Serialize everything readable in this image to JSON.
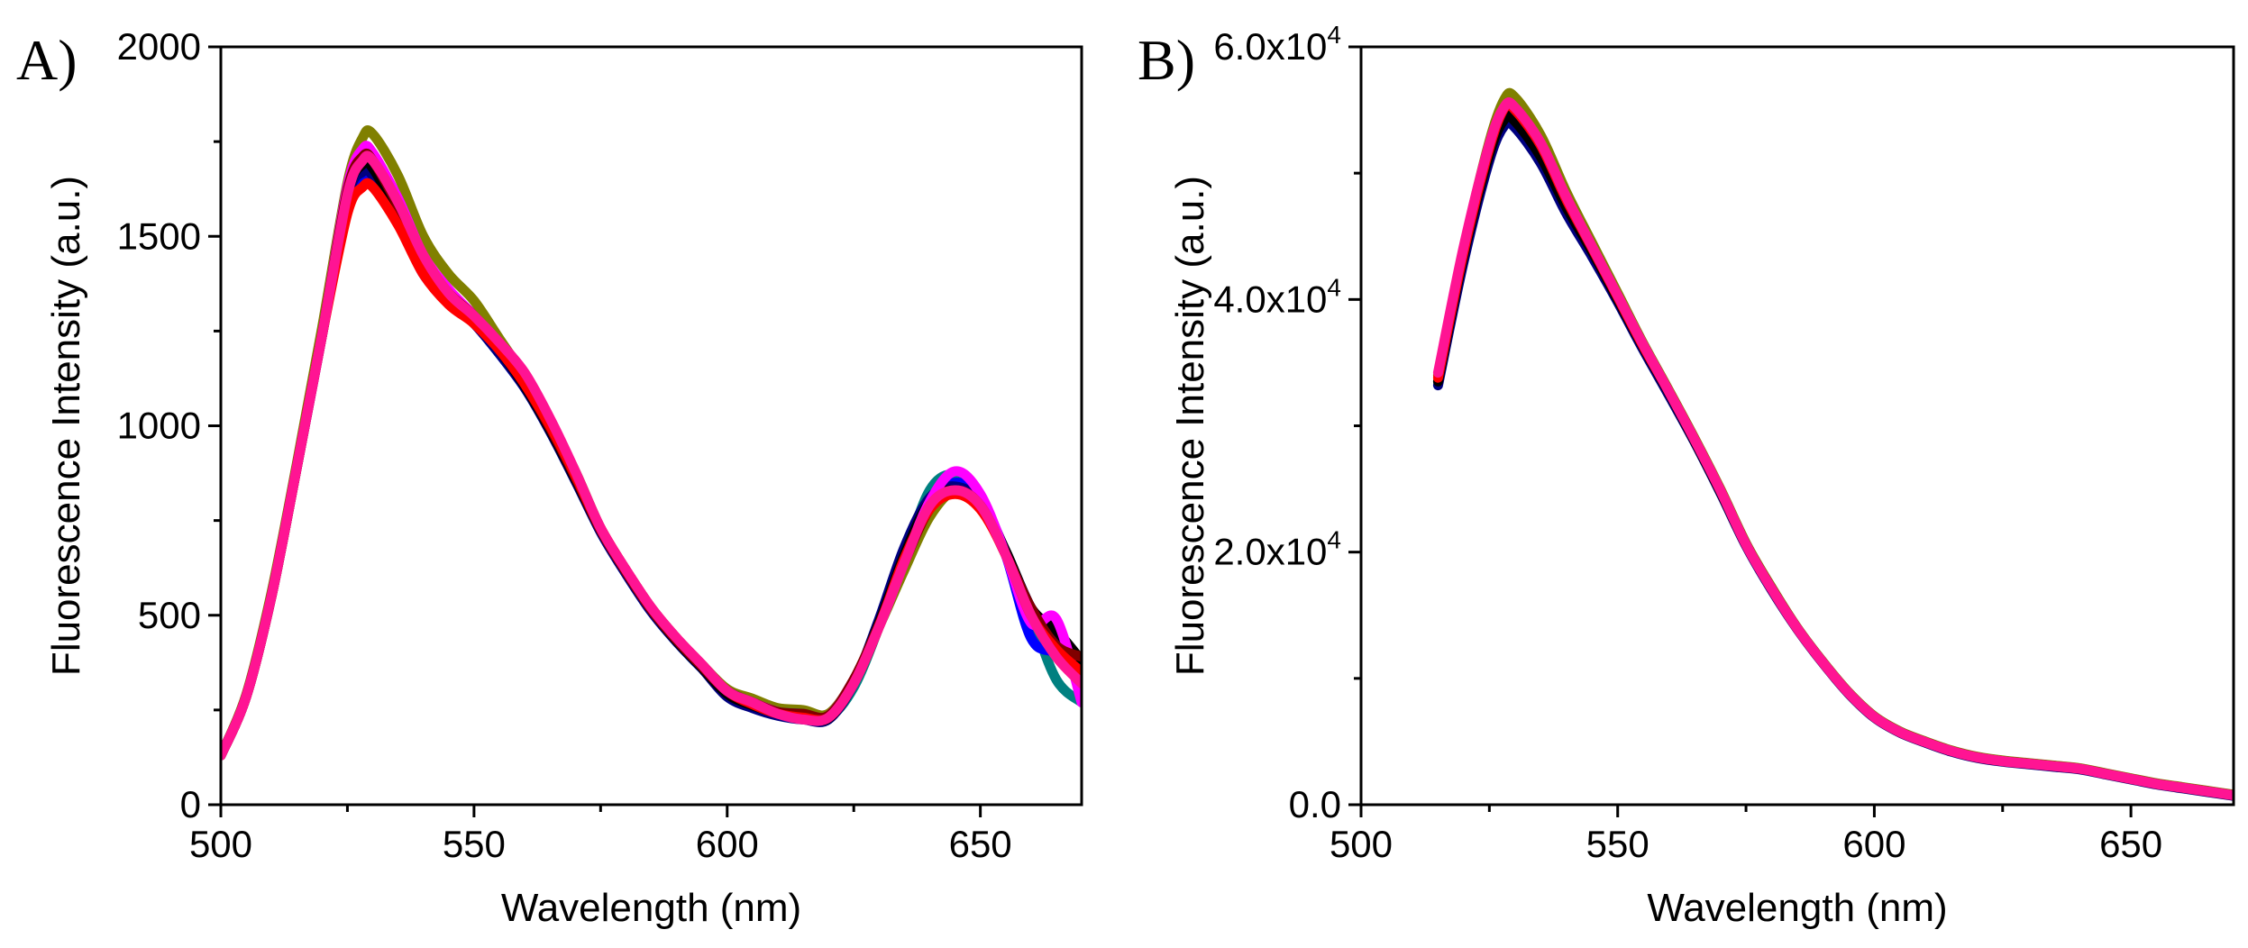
{
  "chart_data": [
    {
      "type": "line",
      "panel_label": "A)",
      "xlabel": "Wavelength (nm)",
      "ylabel": "Fluorescence Intensity (a.u.)",
      "xlim": [
        500,
        670
      ],
      "ylim": [
        0,
        2000
      ],
      "xticks": [
        500,
        550,
        600,
        650
      ],
      "yticks": [
        0,
        500,
        1000,
        1500,
        2000
      ],
      "xtick_labels": [
        "500",
        "550",
        "600",
        "650"
      ],
      "ytick_labels": [
        "0",
        "500",
        "1000",
        "1500",
        "2000"
      ],
      "grid": false,
      "legend": "none",
      "x": [
        500,
        505,
        510,
        515,
        520,
        525,
        528,
        530,
        535,
        540,
        545,
        550,
        555,
        560,
        565,
        570,
        575,
        580,
        585,
        590,
        595,
        600,
        605,
        610,
        615,
        620,
        625,
        630,
        635,
        640,
        645,
        650,
        655,
        660,
        665,
        670
      ],
      "series": [
        {
          "color": "#808000",
          "values": [
            130,
            290,
            560,
            900,
            1260,
            1640,
            1760,
            1770,
            1660,
            1500,
            1400,
            1330,
            1230,
            1130,
            1010,
            880,
            730,
            620,
            520,
            440,
            370,
            305,
            280,
            255,
            250,
            240,
            330,
            470,
            620,
            760,
            830,
            800,
            670,
            510,
            420,
            370
          ]
        },
        {
          "color": "#008080",
          "values": [
            130,
            285,
            550,
            890,
            1240,
            1600,
            1680,
            1670,
            1560,
            1420,
            1340,
            1280,
            1200,
            1110,
            990,
            860,
            720,
            610,
            510,
            430,
            360,
            300,
            270,
            245,
            240,
            230,
            310,
            470,
            650,
            830,
            870,
            800,
            660,
            500,
            330,
            270
          ]
        },
        {
          "color": "#0000ff",
          "values": [
            130,
            285,
            550,
            890,
            1240,
            1590,
            1650,
            1640,
            1540,
            1400,
            1330,
            1270,
            1190,
            1100,
            990,
            860,
            720,
            610,
            510,
            430,
            360,
            290,
            260,
            240,
            230,
            230,
            320,
            480,
            660,
            800,
            850,
            810,
            660,
            440,
            400,
            350
          ]
        },
        {
          "color": "#000080",
          "values": [
            130,
            285,
            550,
            890,
            1240,
            1600,
            1670,
            1660,
            1550,
            1410,
            1330,
            1270,
            1190,
            1100,
            985,
            855,
            720,
            610,
            510,
            430,
            360,
            285,
            255,
            235,
            225,
            225,
            320,
            490,
            680,
            810,
            840,
            800,
            670,
            520,
            430,
            380
          ]
        },
        {
          "color": "#000000",
          "values": [
            130,
            285,
            550,
            890,
            1240,
            1610,
            1690,
            1680,
            1560,
            1420,
            1340,
            1280,
            1200,
            1105,
            990,
            860,
            725,
            615,
            515,
            432,
            362,
            292,
            262,
            242,
            232,
            228,
            325,
            480,
            660,
            800,
            830,
            790,
            670,
            520,
            460,
            380
          ]
        },
        {
          "color": "#ff00ff",
          "values": [
            130,
            285,
            550,
            890,
            1240,
            1630,
            1730,
            1720,
            1600,
            1450,
            1360,
            1290,
            1210,
            1120,
            1000,
            870,
            730,
            620,
            520,
            440,
            370,
            300,
            270,
            245,
            235,
            235,
            330,
            470,
            640,
            800,
            880,
            820,
            660,
            480,
            490,
            270
          ]
        },
        {
          "color": "#800000",
          "values": [
            130,
            285,
            550,
            890,
            1240,
            1620,
            1710,
            1700,
            1580,
            1440,
            1350,
            1290,
            1210,
            1110,
            995,
            865,
            725,
            615,
            515,
            435,
            365,
            300,
            270,
            245,
            240,
            235,
            330,
            475,
            640,
            780,
            830,
            790,
            660,
            520,
            420,
            390
          ]
        },
        {
          "color": "#ff0000",
          "values": [
            130,
            285,
            550,
            890,
            1240,
            1560,
            1630,
            1630,
            1530,
            1400,
            1320,
            1270,
            1200,
            1110,
            1000,
            870,
            730,
            620,
            520,
            440,
            370,
            300,
            265,
            240,
            230,
            230,
            320,
            470,
            650,
            780,
            820,
            780,
            660,
            500,
            410,
            350
          ]
        },
        {
          "color": "#ff1493",
          "values": [
            130,
            285,
            550,
            890,
            1240,
            1610,
            1700,
            1700,
            1590,
            1450,
            1350,
            1290,
            1220,
            1140,
            1020,
            880,
            730,
            620,
            520,
            440,
            370,
            300,
            270,
            240,
            225,
            230,
            320,
            470,
            640,
            790,
            830,
            790,
            660,
            500,
            390,
            320
          ]
        }
      ]
    },
    {
      "type": "line",
      "panel_label": "B)",
      "xlabel": "Wavelength (nm)",
      "ylabel": "Fluorescence Intensity (a.u.)",
      "xlim": [
        500,
        670
      ],
      "ylim": [
        0,
        60000
      ],
      "xticks": [
        500,
        550,
        600,
        650
      ],
      "yticks": [
        0,
        20000,
        40000,
        60000
      ],
      "xtick_labels": [
        "500",
        "550",
        "600",
        "650"
      ],
      "ytick_labels": [
        {
          "mantissa": "0.0",
          "exponent": ""
        },
        {
          "mantissa": "2.0x10",
          "exponent": "4"
        },
        {
          "mantissa": "4.0x10",
          "exponent": "4"
        },
        {
          "mantissa": "6.0x10",
          "exponent": "4"
        }
      ],
      "grid": false,
      "legend": "none",
      "x": [
        515,
        520,
        525,
        528,
        530,
        535,
        540,
        545,
        550,
        555,
        560,
        565,
        570,
        575,
        580,
        585,
        590,
        595,
        600,
        605,
        610,
        615,
        620,
        625,
        630,
        635,
        640,
        645,
        650,
        655,
        660,
        665,
        670
      ],
      "series": [
        {
          "color": "#808000",
          "values": [
            34000,
            44000,
            52500,
            55900,
            56000,
            53000,
            48500,
            44500,
            40500,
            36500,
            32800,
            29000,
            25000,
            20700,
            17200,
            14000,
            11300,
            8900,
            7000,
            5800,
            5000,
            4300,
            3800,
            3500,
            3300,
            3100,
            2900,
            2500,
            2100,
            1700,
            1400,
            1100,
            800
          ]
        },
        {
          "color": "#000080",
          "values": [
            33200,
            43000,
            51000,
            53800,
            53600,
            50800,
            46800,
            43400,
            39800,
            36000,
            32400,
            28700,
            24700,
            20500,
            17000,
            13900,
            11200,
            8800,
            6900,
            5700,
            4900,
            4200,
            3700,
            3400,
            3200,
            3000,
            2800,
            2400,
            2000,
            1600,
            1300,
            1000,
            700
          ]
        },
        {
          "color": "#000000",
          "values": [
            33500,
            43500,
            51500,
            54300,
            54100,
            51300,
            47300,
            43800,
            40000,
            36200,
            32600,
            28800,
            24800,
            20600,
            17100,
            13950,
            11250,
            8850,
            6950,
            5750,
            4950,
            4250,
            3750,
            3450,
            3250,
            3050,
            2850,
            2450,
            2050,
            1650,
            1350,
            1050,
            750
          ]
        },
        {
          "color": "#ff0000",
          "values": [
            33800,
            43800,
            52000,
            55200,
            55000,
            52200,
            47900,
            44100,
            40200,
            36300,
            32700,
            28900,
            24900,
            20600,
            17100,
            13950,
            11250,
            8850,
            6950,
            5750,
            4950,
            4250,
            3750,
            3450,
            3250,
            3050,
            2850,
            2450,
            2050,
            1650,
            1350,
            1050,
            750
          ]
        },
        {
          "color": "#ff1493",
          "values": [
            34200,
            44200,
            52300,
            55300,
            55200,
            52400,
            48100,
            44200,
            40300,
            36400,
            32700,
            28900,
            24900,
            20600,
            17100,
            13950,
            11250,
            8850,
            6950,
            5750,
            4950,
            4250,
            3750,
            3450,
            3250,
            3050,
            2850,
            2450,
            2050,
            1650,
            1350,
            1050,
            750
          ]
        }
      ]
    }
  ]
}
